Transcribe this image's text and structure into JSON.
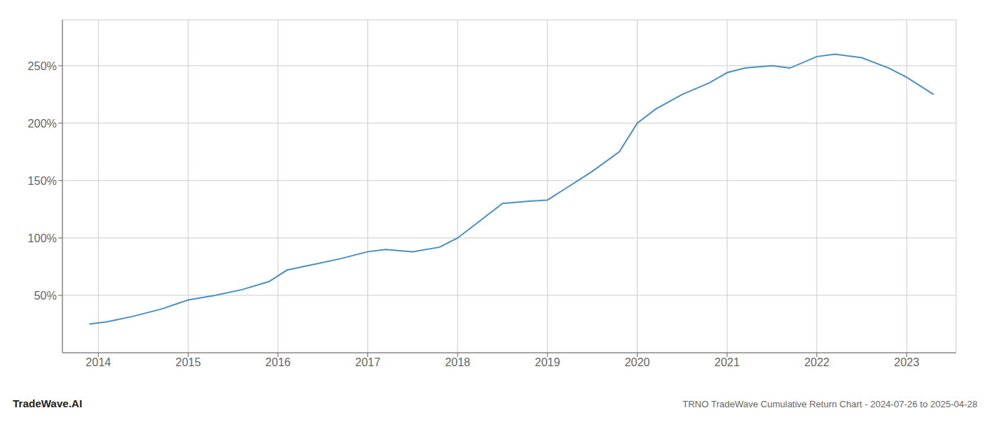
{
  "chart_data": {
    "type": "line",
    "title": "TRNO TradeWave Cumulative Return Chart - 2024-07-26 to 2025-04-28",
    "annotations": [
      "TradeWave.AI"
    ],
    "x": [
      2013.9,
      2014.1,
      2014.4,
      2014.7,
      2015.0,
      2015.3,
      2015.6,
      2015.9,
      2016.1,
      2016.4,
      2016.7,
      2017.0,
      2017.2,
      2017.5,
      2017.8,
      2018.0,
      2018.2,
      2018.5,
      2018.8,
      2019.0,
      2019.2,
      2019.5,
      2019.8,
      2020.0,
      2020.2,
      2020.5,
      2020.8,
      2021.0,
      2021.2,
      2021.5,
      2021.7,
      2022.0,
      2022.2,
      2022.5,
      2022.8,
      2023.0,
      2023.3
    ],
    "values": [
      25,
      27,
      32,
      38,
      46,
      50,
      55,
      62,
      72,
      77,
      82,
      88,
      90,
      88,
      92,
      100,
      112,
      130,
      132,
      133,
      143,
      158,
      175,
      200,
      212,
      225,
      235,
      244,
      248,
      250,
      248,
      258,
      260,
      257,
      248,
      240,
      225
    ],
    "color": "#4a90c4",
    "xlim": [
      2013.6,
      2023.55
    ],
    "xticks": [
      2014,
      2015,
      2016,
      2017,
      2018,
      2019,
      2020,
      2021,
      2022,
      2023
    ],
    "ylim": [
      0,
      290
    ],
    "yticks": [
      {
        "value": 50,
        "label": "50%"
      },
      {
        "value": 100,
        "label": "100%"
      },
      {
        "value": 150,
        "label": "150%"
      },
      {
        "value": 200,
        "label": "200%"
      },
      {
        "value": 250,
        "label": "250%"
      }
    ],
    "grid": true
  }
}
